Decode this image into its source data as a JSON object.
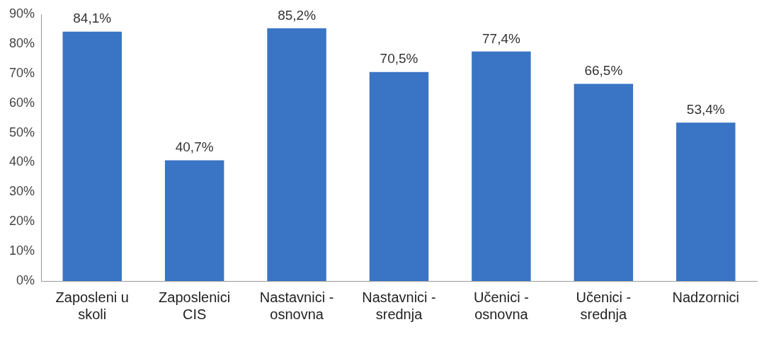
{
  "chart_data": {
    "type": "bar",
    "categories": [
      "Zaposleni u skoli",
      "Zaposlenici CIS",
      "Nastavnici - osnovna",
      "Nastavnici - srednja",
      "Učenici - osnovna",
      "Učenici - srednja",
      "Nadzornici"
    ],
    "values": [
      84.1,
      40.7,
      85.2,
      70.5,
      77.4,
      66.5,
      53.4
    ],
    "value_labels": [
      "84,1%",
      "40,7%",
      "85,2%",
      "70,5%",
      "77,4%",
      "66,5%",
      "53,4%"
    ],
    "color": "#3a74c4",
    "ylim": [
      0,
      90
    ],
    "yticks": [
      {
        "value": 0,
        "label": "0%"
      },
      {
        "value": 10,
        "label": "10%"
      },
      {
        "value": 20,
        "label": "20%"
      },
      {
        "value": 30,
        "label": "30%"
      },
      {
        "value": 40,
        "label": "40%"
      },
      {
        "value": 50,
        "label": "50%"
      },
      {
        "value": 60,
        "label": "60%"
      },
      {
        "value": 70,
        "label": "70%"
      },
      {
        "value": 80,
        "label": "80%"
      },
      {
        "value": 90,
        "label": "90%"
      }
    ],
    "grid": false,
    "legend": false
  }
}
